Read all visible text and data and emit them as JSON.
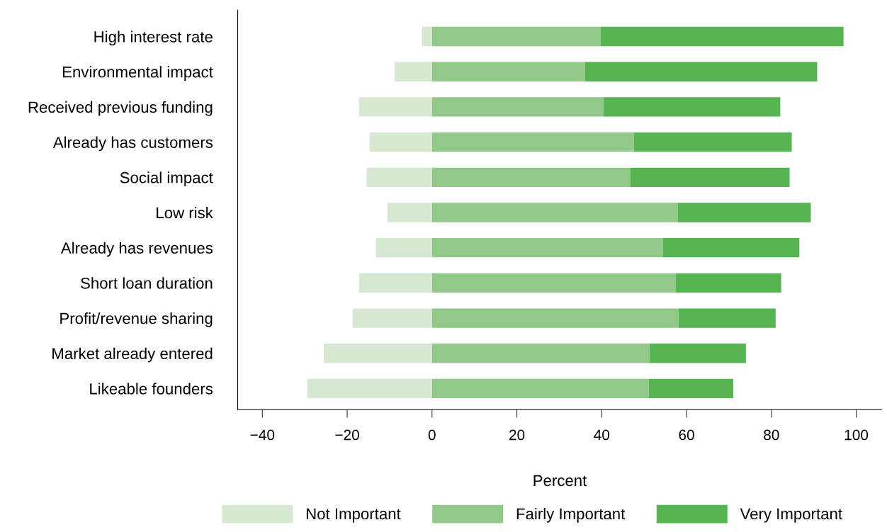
{
  "chart_data": {
    "type": "bar",
    "orientation": "horizontal",
    "stacked": true,
    "xlabel": "Percent",
    "categories": [
      "High interest rate",
      "Environmental impact",
      "Received previous funding",
      "Already has customers",
      "Social impact",
      "Low risk",
      "Already has revenues",
      "Short loan duration",
      "Profit/revenue sharing",
      "Market already entered",
      "Likeable founders"
    ],
    "series": [
      {
        "name": "Not Important",
        "color": "#d7e9d3",
        "values": [
          -2.3,
          -8.8,
          -17.2,
          -14.7,
          -15.4,
          -10.5,
          -13.2,
          -17.2,
          -18.7,
          -25.5,
          -29.4
        ]
      },
      {
        "name": "Fairly Important",
        "color": "#92c98a",
        "values": [
          39.7,
          36.1,
          40.4,
          47.6,
          46.7,
          57.9,
          54.4,
          57.4,
          58.1,
          51.3,
          51.1
        ]
      },
      {
        "name": "Very Important",
        "color": "#56b452",
        "values": [
          57.3,
          54.7,
          41.7,
          37.2,
          37.6,
          31.4,
          32.2,
          24.9,
          22.9,
          22.7,
          19.9
        ]
      }
    ],
    "xlim": [
      -45.8,
      106
    ],
    "xticks": [
      {
        "value": -40,
        "label": "−40"
      },
      {
        "value": -20,
        "label": "−20"
      },
      0,
      20,
      40,
      60,
      80,
      100
    ],
    "legend": "bottom"
  }
}
